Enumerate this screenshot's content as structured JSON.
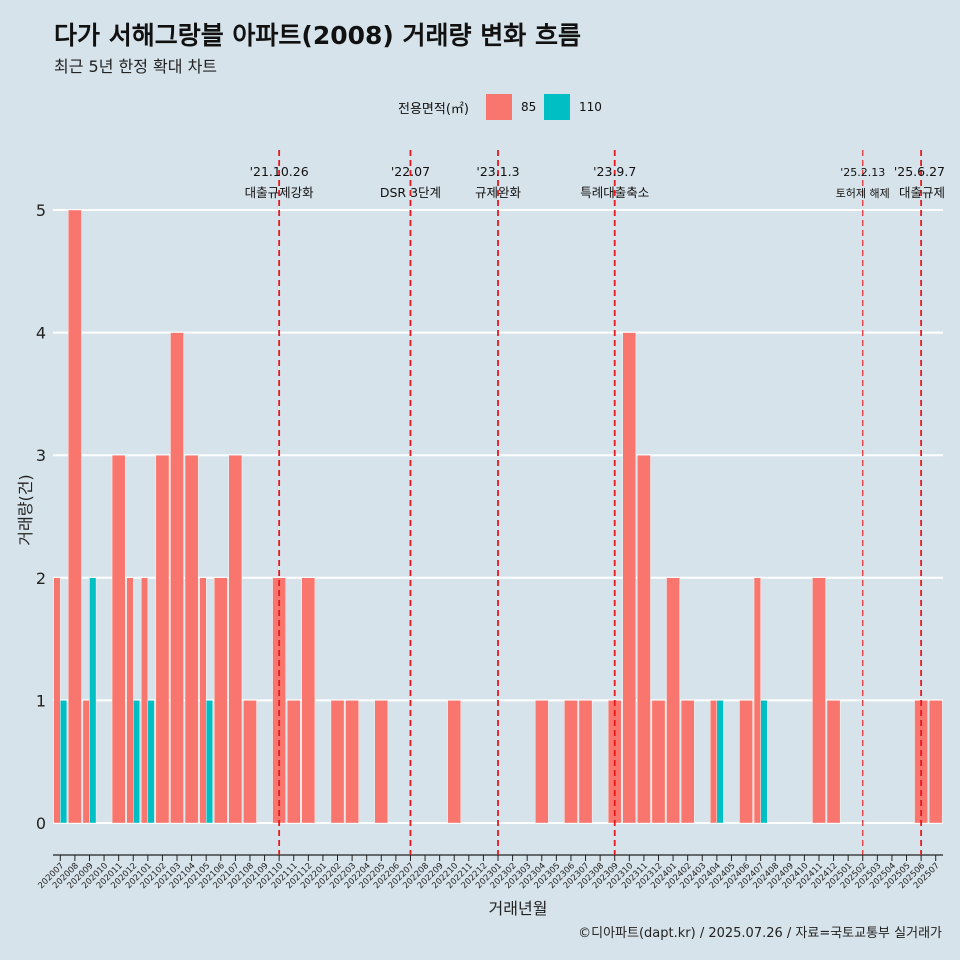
{
  "title": "다가 서해그랑블 아파트(2008) 거래량 변화 흐름",
  "subtitle": "최근 5년 한정 확대 차트",
  "caption": "©디아파트(dapt.kr) / 2025.07.26 / 자료=국토교통부 실거래가",
  "legend": {
    "title": "전용면적(㎡)",
    "items": [
      {
        "label": "85",
        "color": "#f8766d"
      },
      {
        "label": "110",
        "color": "#00bfc4"
      }
    ]
  },
  "chart_data": {
    "type": "bar",
    "title": "다가 서해그랑블 아파트(2008) 거래량 변화 흐름",
    "xlabel": "거래년월",
    "ylabel": "거래량(건)",
    "ylim": [
      0,
      5
    ],
    "yticks": [
      0,
      1,
      2,
      3,
      4,
      5
    ],
    "grid": true,
    "legend_position": "top",
    "categories": [
      "202007",
      "202008",
      "202009",
      "202010",
      "202011",
      "202012",
      "202101",
      "202102",
      "202103",
      "202104",
      "202105",
      "202106",
      "202107",
      "202108",
      "202109",
      "202110",
      "202111",
      "202112",
      "202201",
      "202202",
      "202203",
      "202204",
      "202205",
      "202206",
      "202207",
      "202208",
      "202209",
      "202210",
      "202211",
      "202212",
      "202301",
      "202302",
      "202303",
      "202304",
      "202305",
      "202306",
      "202307",
      "202308",
      "202309",
      "202310",
      "202311",
      "202312",
      "202401",
      "202402",
      "202403",
      "202404",
      "202405",
      "202406",
      "202407",
      "202408",
      "202409",
      "202410",
      "202411",
      "202412",
      "202501",
      "202502",
      "202503",
      "202504",
      "202505",
      "202506",
      "202507"
    ],
    "series": [
      {
        "name": "85",
        "color": "#f8766d",
        "values": [
          2,
          5,
          1,
          0,
          3,
          2,
          2,
          3,
          4,
          3,
          2,
          2,
          3,
          1,
          0,
          2,
          1,
          2,
          0,
          1,
          1,
          0,
          1,
          0,
          0,
          0,
          0,
          1,
          0,
          0,
          0,
          0,
          0,
          1,
          0,
          1,
          1,
          0,
          1,
          4,
          3,
          1,
          2,
          1,
          0,
          1,
          0,
          1,
          2,
          0,
          0,
          0,
          2,
          1,
          0,
          0,
          0,
          0,
          0,
          1,
          1
        ]
      },
      {
        "name": "110",
        "color": "#00bfc4",
        "values": [
          1,
          0,
          2,
          0,
          0,
          1,
          1,
          0,
          0,
          0,
          1,
          0,
          0,
          0,
          0,
          0,
          0,
          0,
          0,
          0,
          0,
          0,
          0,
          0,
          0,
          0,
          0,
          0,
          0,
          0,
          0,
          0,
          0,
          0,
          0,
          0,
          0,
          0,
          0,
          0,
          0,
          0,
          0,
          0,
          0,
          1,
          0,
          0,
          1,
          0,
          0,
          0,
          0,
          0,
          0,
          0,
          0,
          0,
          0,
          0,
          0
        ]
      }
    ],
    "annotations": [
      {
        "month": "202110",
        "date": "'21.10.26",
        "label": "대출규제강화",
        "style": "heavy"
      },
      {
        "month": "202207",
        "date": "'22.07",
        "label": "DSR 3단계",
        "style": "heavy"
      },
      {
        "month": "202301",
        "date": "'23.1.3",
        "label": "규제완화",
        "style": "heavy"
      },
      {
        "month": "202309",
        "date": "'23.9.7",
        "label": "특례대출축소",
        "style": "heavy"
      },
      {
        "month": "202502",
        "date": "'25.2.13",
        "label": "토허제 해제",
        "style": "light"
      },
      {
        "month": "202506",
        "date": "'25.6.27",
        "label": "대출규제",
        "style": "heavy"
      }
    ]
  }
}
